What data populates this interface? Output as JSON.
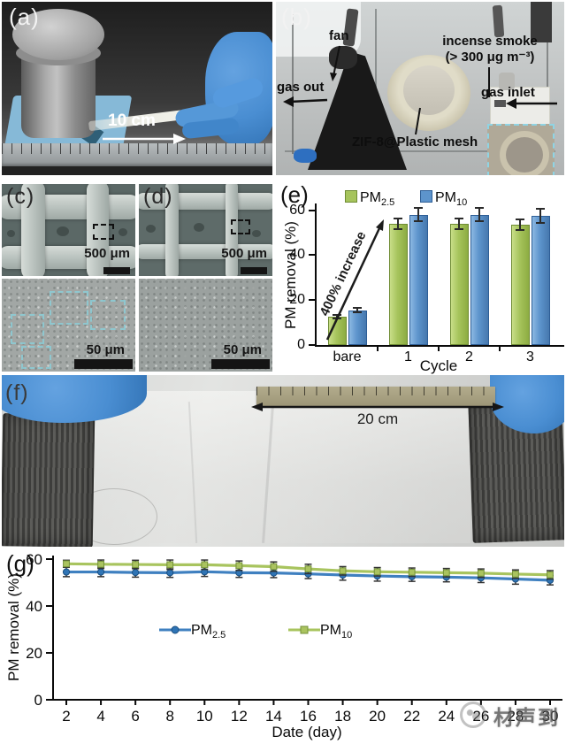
{
  "panels": {
    "a": {
      "label": "(a)",
      "scale_text": "10 cm"
    },
    "b": {
      "label": "(b)",
      "fan": "fan",
      "gas_out": "gas out",
      "incense_line1": "incense smoke",
      "incense_line2": "(> 300 μg m⁻³)",
      "gas_inlet": "gas inlet",
      "mesh_label": "ZIF-8@Plastic mesh"
    },
    "c": {
      "label": "(c)",
      "scalebar_top": "500 μm",
      "scalebar_bottom": "50 μm"
    },
    "d": {
      "label": "(d)",
      "scalebar_top": "500 μm",
      "scalebar_bottom": "50 μm"
    },
    "e": {
      "label": "(e)"
    },
    "f": {
      "label": "(f)",
      "scale_text": "20 cm"
    },
    "g": {
      "label": "(g)"
    }
  },
  "watermark": {
    "text": "材声到",
    "logo": "circular-logo"
  },
  "colors": {
    "glove_blue": "#4a8ed2",
    "inset_border": "#8fd4e4",
    "error_bar": "#2f2f2f"
  },
  "chart_data": [
    {
      "id": "panel-e",
      "type": "bar",
      "categories": [
        "bare",
        "1",
        "2",
        "3"
      ],
      "series": [
        {
          "name": "PM2.5",
          "name_base": "PM",
          "name_sub": "2.5",
          "color": "#a6c45c",
          "color_light": "#c8de88",
          "color_dark": "#8dac42",
          "border": "#6f8c34",
          "values": [
            12.5,
            54,
            54,
            53.5
          ],
          "errors": [
            0.8,
            2.5,
            2.5,
            2.5
          ]
        },
        {
          "name": "PM10",
          "name_base": "PM",
          "name_sub": "10",
          "color": "#5d94cc",
          "color_light": "#8cb8e2",
          "color_dark": "#4678ae",
          "border": "#2e5e96",
          "values": [
            15.5,
            58,
            58,
            57.5
          ],
          "errors": [
            1,
            3,
            3,
            3
          ]
        }
      ],
      "xlabel": "Cycle",
      "ylabel": "PM removal (%)",
      "ylim": [
        0,
        63
      ],
      "yticks": [
        0,
        20,
        40,
        60
      ],
      "annotation": "400% increase",
      "legend_position": "top-inside",
      "grid": false
    },
    {
      "id": "panel-g",
      "type": "line",
      "x": [
        2,
        4,
        6,
        8,
        10,
        12,
        14,
        16,
        18,
        20,
        22,
        24,
        26,
        28,
        30
      ],
      "series": [
        {
          "name": "PM2.5",
          "name_base": "PM",
          "name_sub": "2.5",
          "color": "#3f80c0",
          "marker": "circle",
          "marker_fill": "#2f74b5",
          "marker_border": "#1b4f80",
          "values": [
            54.5,
            54.5,
            54.3,
            54.2,
            54.6,
            54.2,
            54.1,
            53.7,
            53.2,
            52.8,
            52.5,
            52.3,
            52.0,
            51.5,
            51.0
          ],
          "errors": [
            2,
            2,
            2,
            2,
            2,
            2,
            2,
            2,
            2.2,
            2.2,
            2,
            2,
            2,
            2.2,
            2
          ]
        },
        {
          "name": "PM10",
          "name_base": "PM",
          "name_sub": "10",
          "color": "#a8c45e",
          "marker": "square",
          "marker_fill": "#aac35f",
          "marker_border": "#74923a",
          "values": [
            58.0,
            57.8,
            57.7,
            57.6,
            57.6,
            57.2,
            56.8,
            55.8,
            55.0,
            54.6,
            54.4,
            54.2,
            54.0,
            53.6,
            53.3
          ],
          "errors": [
            1.5,
            1.8,
            1.8,
            2,
            2,
            2,
            2,
            2,
            1.8,
            1.8,
            1.8,
            1.8,
            1.8,
            1.8,
            1.8
          ]
        }
      ],
      "xlabel": "Date (day)",
      "ylabel": "PM removal (%)",
      "ylim": [
        0,
        60.75
      ],
      "yticks": [
        0,
        20,
        40,
        60
      ],
      "xticks": [
        2,
        4,
        6,
        8,
        10,
        12,
        14,
        16,
        18,
        20,
        22,
        24,
        26,
        28,
        30
      ],
      "legend_position": "inside-left",
      "grid": false
    }
  ]
}
